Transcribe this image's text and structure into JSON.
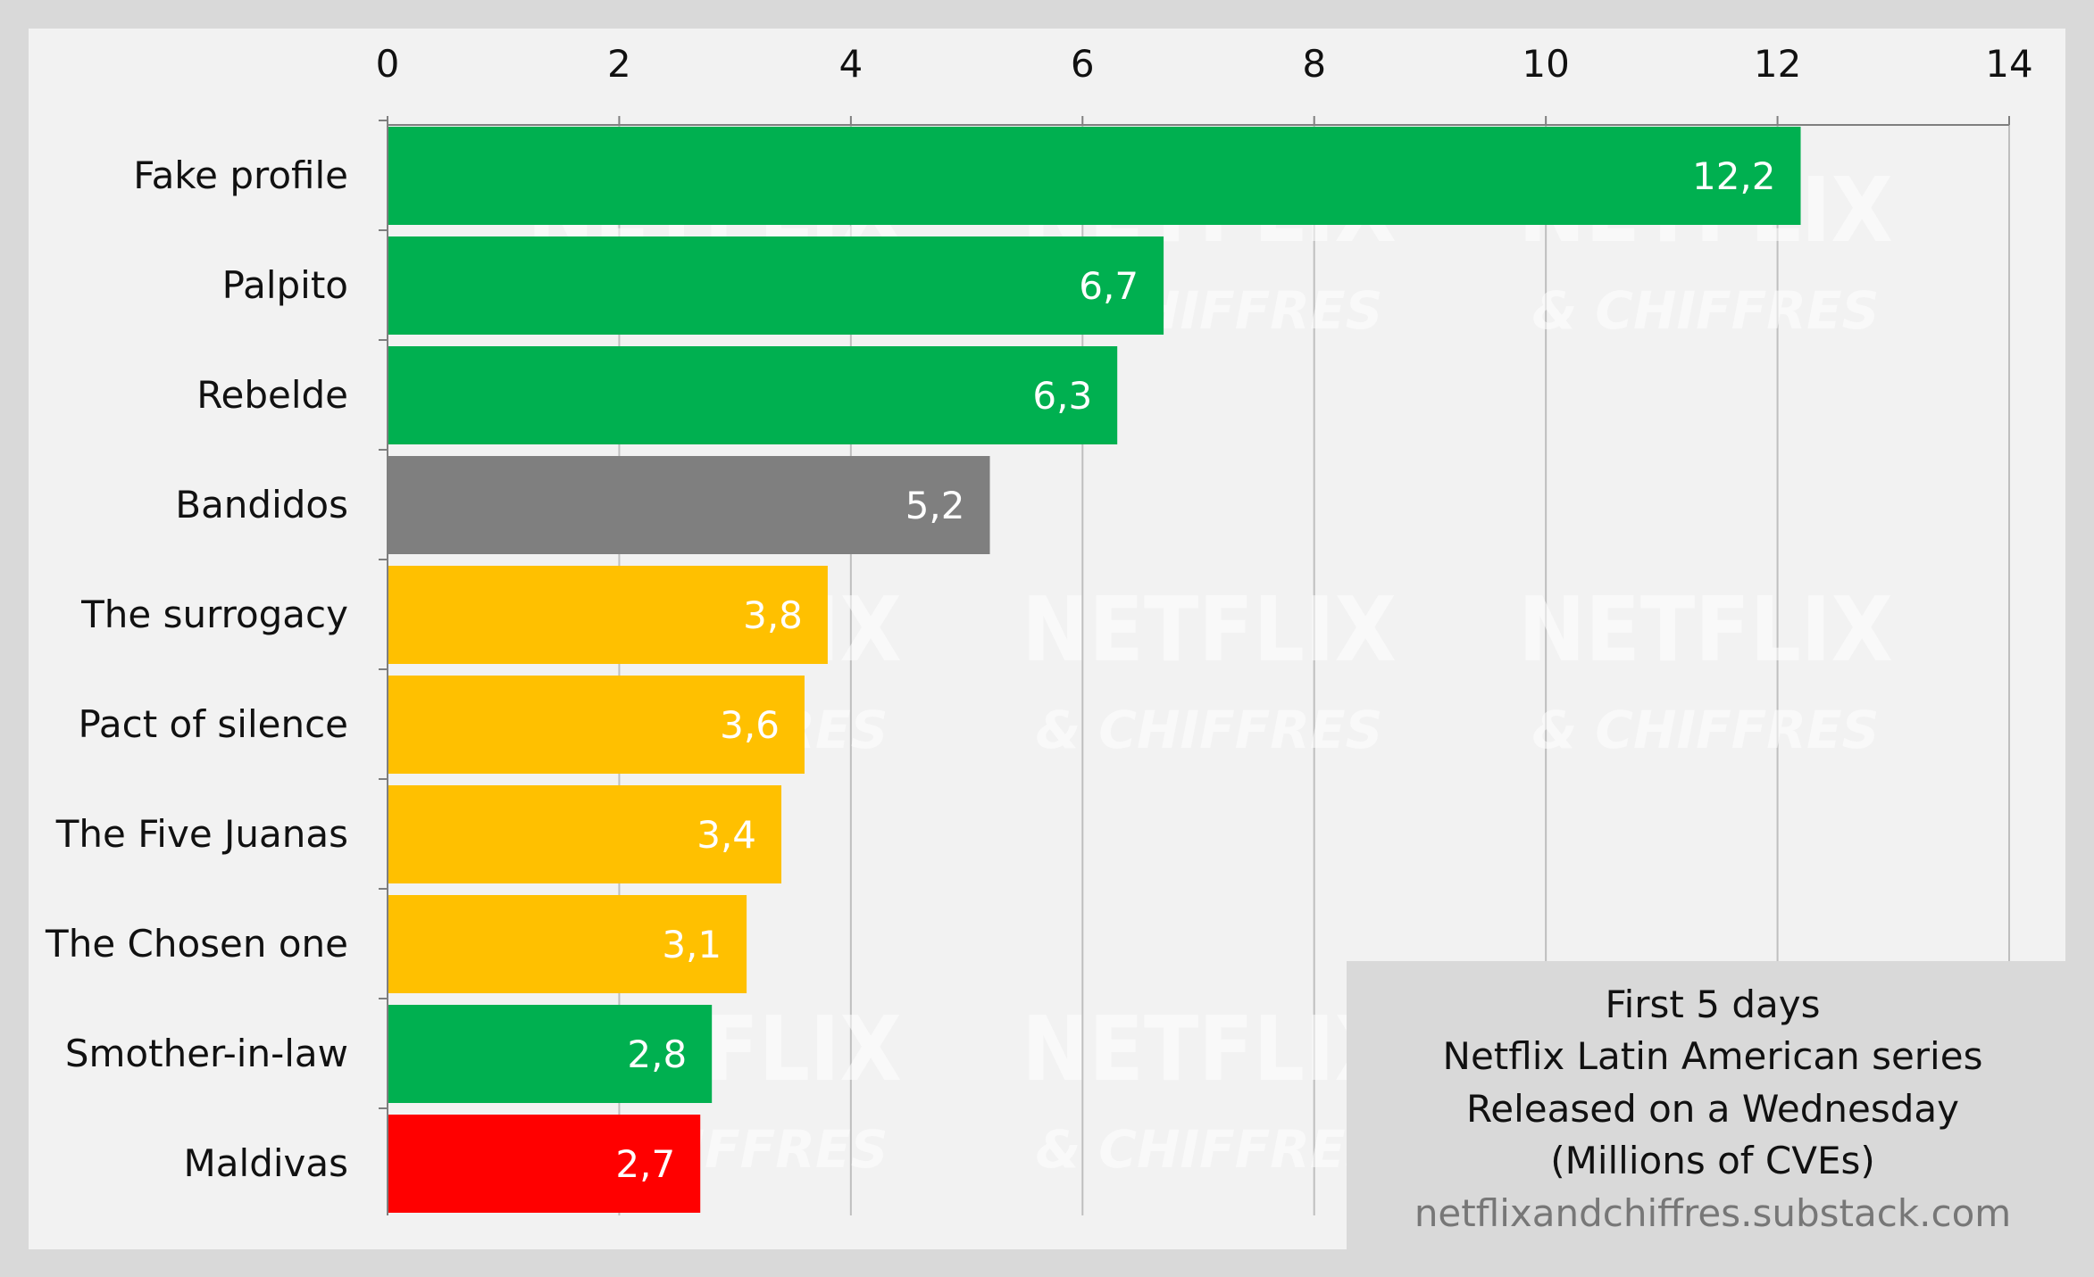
{
  "chart_data": {
    "type": "bar",
    "orientation": "horizontal",
    "categories": [
      "Fake profile",
      "Palpito",
      "Rebelde",
      "Bandidos",
      "The surrogacy",
      "Pact of silence",
      "The Five Juanas",
      "The Chosen one",
      "Smother-in-law",
      "Maldivas"
    ],
    "values": [
      12.2,
      6.7,
      6.3,
      5.2,
      3.8,
      3.6,
      3.4,
      3.1,
      2.8,
      2.7
    ],
    "value_labels": [
      "12,2",
      "6,7",
      "6,3",
      "5,2",
      "3,8",
      "3,6",
      "3,4",
      "3,1",
      "2,8",
      "2,7"
    ],
    "bar_colors": [
      "#00b050",
      "#00b050",
      "#00b050",
      "#7f7f7f",
      "#ffc000",
      "#ffc000",
      "#ffc000",
      "#ffc000",
      "#00b050",
      "#ff0000"
    ],
    "xlim": [
      0,
      14
    ],
    "x_ticks": [
      0,
      2,
      4,
      6,
      8,
      10,
      12,
      14
    ],
    "grid": true,
    "x_axis_position": "top",
    "xlabel": "",
    "ylabel": ""
  },
  "note": {
    "lines": [
      "First 5 days",
      "Netflix Latin American series",
      "Released on a Wednesday",
      "(Millions of CVEs)"
    ],
    "source": "netflixandchiffres.substack.com"
  },
  "watermark": {
    "brand": "NETFLIX",
    "tagline": "& CHIFFRES"
  },
  "colors": {
    "background": "#d9d9d9",
    "plot_background": "#f2f2f2",
    "gridline": "#bfbfbf"
  }
}
